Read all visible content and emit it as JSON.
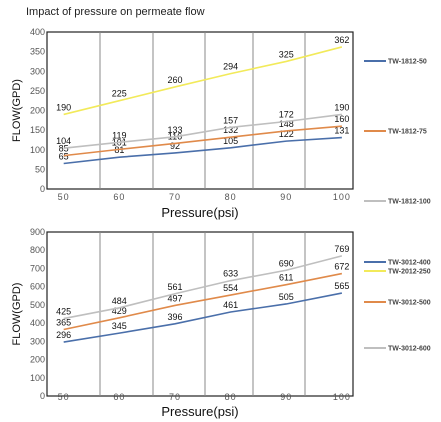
{
  "title": "Impact of pressure on permeate flow",
  "chart_data": [
    {
      "type": "line",
      "title": "",
      "xlabel": "Pressure(psi)",
      "ylabel": "FLOW(GPD)",
      "x": [
        50,
        60,
        70,
        80,
        90,
        100
      ],
      "x_tick_labels": [
        "50",
        "60",
        "70",
        "80",
        "90",
        "100"
      ],
      "xlim": [
        47,
        102
      ],
      "ylim": [
        0,
        400
      ],
      "y_ticks": [
        0,
        50,
        100,
        150,
        200,
        250,
        300,
        350,
        400
      ],
      "y_tick_labels": [
        "0",
        "50",
        "100",
        "150",
        "200",
        "250",
        "300",
        "350",
        "400"
      ],
      "grid": "vertical",
      "legend": "right",
      "series": [
        {
          "name": "TW-1812-50",
          "color": "#4a6faa",
          "values": [
            65,
            81,
            92,
            105,
            122,
            131
          ],
          "labels": [
            "65",
            "81",
            "92",
            "105",
            "122",
            "131"
          ]
        },
        {
          "name": "TW-1812-75",
          "color": "#e08a4a",
          "values": [
            85,
            101,
            116,
            132,
            148,
            160
          ],
          "labels": [
            "85",
            "101",
            "116",
            "132",
            "148",
            "160"
          ]
        },
        {
          "name": "TW-1812-100",
          "color": "#bfbfbf",
          "values": [
            104,
            119,
            133,
            157,
            172,
            190
          ],
          "labels": [
            "104",
            "119",
            "133",
            "157",
            "172",
            "190"
          ]
        },
        {
          "name": "TW-2012-250",
          "color": "#f2ea5a",
          "values": [
            190,
            225,
            260,
            294,
            325,
            362
          ],
          "labels": [
            "190",
            "225",
            "260",
            "294",
            "325",
            "362"
          ]
        }
      ]
    },
    {
      "type": "line",
      "title": "",
      "xlabel": "Pressure(psi)",
      "ylabel": "FLOW(GPD)",
      "x": [
        50,
        60,
        70,
        80,
        90,
        100
      ],
      "x_tick_labels": [
        "50",
        "60",
        "70",
        "80",
        "90",
        "100"
      ],
      "xlim": [
        47,
        102
      ],
      "ylim": [
        0,
        900
      ],
      "y_ticks": [
        0,
        100,
        200,
        300,
        400,
        500,
        600,
        700,
        800,
        900
      ],
      "y_tick_labels": [
        "0",
        "100",
        "200",
        "300",
        "400",
        "500",
        "600",
        "700",
        "800",
        "900"
      ],
      "grid": "vertical",
      "legend": "right",
      "series": [
        {
          "name": "TW-3012-400",
          "color": "#4a6faa",
          "values": [
            296,
            345,
            396,
            461,
            505,
            565
          ],
          "labels": [
            "296",
            "345",
            "396",
            "461",
            "505",
            "565"
          ]
        },
        {
          "name": "TW-3012-500",
          "color": "#e08a4a",
          "values": [
            365,
            429,
            497,
            554,
            611,
            672
          ],
          "labels": [
            "365",
            "429",
            "497",
            "554",
            "611",
            "672"
          ]
        },
        {
          "name": "TW-3012-600",
          "color": "#bfbfbf",
          "values": [
            425,
            484,
            561,
            633,
            690,
            769
          ],
          "labels": [
            "425",
            "484",
            "561",
            "633",
            "690",
            "769"
          ]
        }
      ]
    }
  ]
}
